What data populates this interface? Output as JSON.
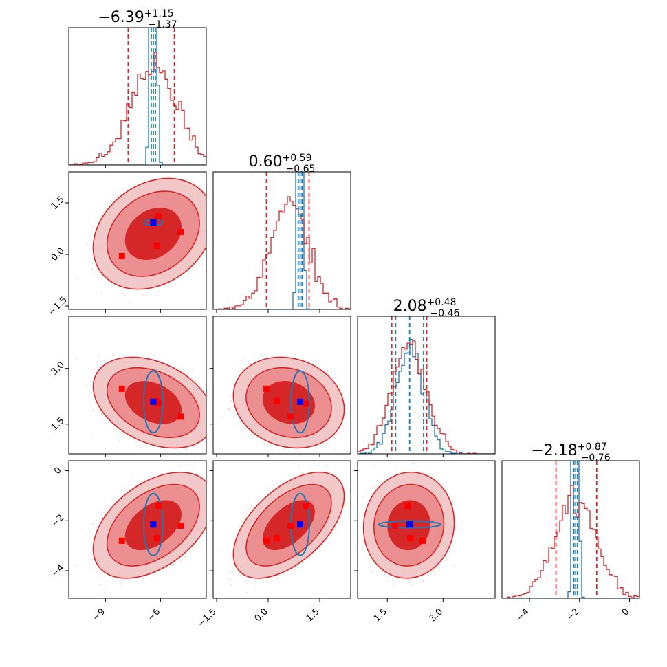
{
  "chart_data": {
    "type": "corner",
    "parameters": [
      {
        "median": -6.39,
        "plus": 1.15,
        "minus": 1.37,
        "title_main": "−6.39",
        "title_sup": "+1.15",
        "title_sub": "−1.37",
        "range": [
          -11.0,
          -3.5
        ],
        "ticks": [
          -9,
          -6
        ],
        "tick_labels": [
          "−9",
          "−6"
        ]
      },
      {
        "median": 0.6,
        "plus": 0.59,
        "minus": 0.65,
        "title_main": "0.60",
        "title_sup": "+0.59",
        "title_sub": "−0.65",
        "range": [
          -1.6,
          2.4
        ],
        "ticks": [
          -1.5,
          0.0,
          1.5
        ],
        "tick_labels": [
          "−1.5",
          "0.0",
          "1.5"
        ]
      },
      {
        "median": 2.08,
        "plus": 0.48,
        "minus": 0.46,
        "title_main": "2.08",
        "title_sup": "+0.48",
        "title_sub": "−0.46",
        "range": [
          0.7,
          4.4
        ],
        "ticks": [
          1.5,
          3.0
        ],
        "tick_labels": [
          "1.5",
          "3.0"
        ]
      },
      {
        "median": -2.18,
        "plus": 0.87,
        "minus": 0.76,
        "title_main": "−2.18",
        "title_sup": "+0.87",
        "title_sub": "−0.76",
        "range": [
          -5.1,
          0.4
        ],
        "ticks": [
          -4,
          -2,
          0
        ],
        "tick_labels": [
          "−4",
          "−2",
          "0"
        ]
      }
    ],
    "series": [
      {
        "color": "#d62728",
        "quantile_lines": "16/84 percentile dashed",
        "contours": "filled, 3 levels"
      },
      {
        "color": "#1f77b4",
        "quantile_lines": "16/50/84 percentile dashed",
        "contours": "outline ellipses"
      }
    ],
    "markers": {
      "red_squares": [
        [
          -6.1,
          1.1,
          2.05,
          -1.4
        ],
        [
          -4.9,
          0.65,
          1.7,
          -2.2
        ],
        [
          -8.1,
          -0.05,
          2.45,
          -2.8
        ],
        [
          -6.2,
          0.25,
          2.12,
          -2.7
        ]
      ],
      "blue_square": [
        -6.39,
        0.93,
        2.1,
        -2.15
      ]
    },
    "grid": false,
    "legend": "none"
  }
}
